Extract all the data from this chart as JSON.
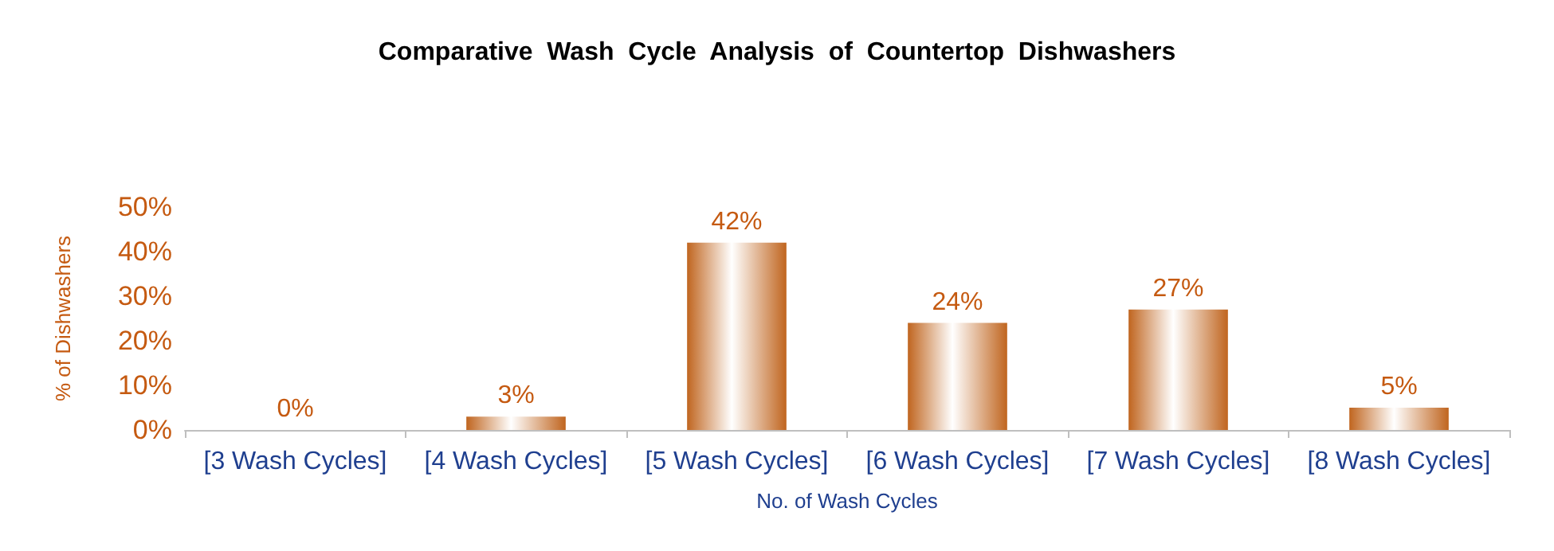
{
  "chart_data": {
    "type": "bar",
    "title": "Comparative  Wash  Cycle  Analysis  of  Countertop  Dishwashers",
    "xlabel": "No. of Wash Cycles",
    "ylabel": "% of Dishwashers",
    "categories": [
      "[3 Wash Cycles]",
      "[4 Wash Cycles]",
      "[5 Wash Cycles]",
      "[6 Wash Cycles]",
      "[7 Wash Cycles]",
      "[8 Wash Cycles]"
    ],
    "values": [
      0,
      3,
      42,
      24,
      27,
      5
    ],
    "value_labels": [
      "0%",
      "3%",
      "42%",
      "24%",
      "27%",
      "5%"
    ],
    "color": "#c0651f",
    "ylim": [
      0,
      50
    ],
    "yticks": [
      {
        "value": 0,
        "label": "0%"
      },
      {
        "value": 10,
        "label": "10%"
      },
      {
        "value": 20,
        "label": "20%"
      },
      {
        "value": 30,
        "label": "30%"
      },
      {
        "value": 40,
        "label": "40%"
      },
      {
        "value": 50,
        "label": "50%"
      }
    ],
    "grid": false
  }
}
